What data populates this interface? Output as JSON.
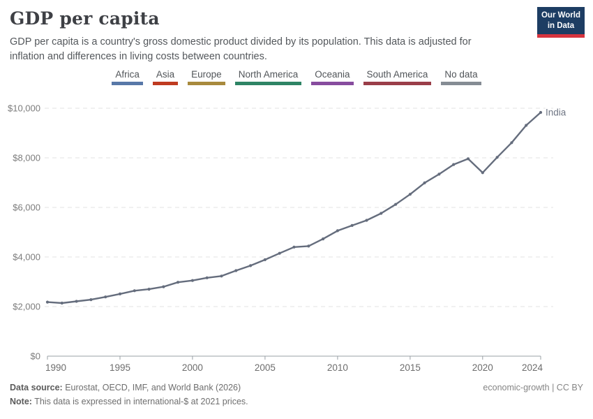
{
  "header": {
    "title": "GDP per capita",
    "subtitle": "GDP per capita is a country's gross domestic product divided by its population. This data is adjusted for inflation and differences in living costs between countries.",
    "logo": {
      "line1": "Our World",
      "line2": "in Data",
      "bg_color": "#1d3d63",
      "bar_color": "#d7343e"
    }
  },
  "legend": {
    "items": [
      {
        "label": "Africa",
        "color": "#5878A8"
      },
      {
        "label": "Asia",
        "color": "#BF3B21"
      },
      {
        "label": "Europe",
        "color": "#A88A3D"
      },
      {
        "label": "North America",
        "color": "#2E8465"
      },
      {
        "label": "Oceania",
        "color": "#874C9E"
      },
      {
        "label": "South America",
        "color": "#9A3E49"
      },
      {
        "label": "No data",
        "color": "#858C94"
      }
    ]
  },
  "chart_data": {
    "type": "line",
    "title": "GDP per capita",
    "xlabel": "",
    "ylabel": "",
    "x": [
      1990,
      1991,
      1992,
      1993,
      1994,
      1995,
      1996,
      1997,
      1998,
      1999,
      2000,
      2001,
      2002,
      2003,
      2004,
      2005,
      2006,
      2007,
      2008,
      2009,
      2010,
      2011,
      2012,
      2013,
      2014,
      2015,
      2016,
      2017,
      2018,
      2019,
      2020,
      2021,
      2022,
      2023,
      2024
    ],
    "series": [
      {
        "name": "India",
        "color": "#656D7D",
        "values": [
          2180,
          2140,
          2210,
          2280,
          2390,
          2510,
          2640,
          2700,
          2800,
          2980,
          3050,
          3160,
          3230,
          3450,
          3650,
          3890,
          4150,
          4400,
          4440,
          4730,
          5060,
          5270,
          5480,
          5760,
          6120,
          6530,
          6990,
          7340,
          7730,
          7960,
          7400,
          8020,
          8610,
          9310,
          9830
        ]
      }
    ],
    "xlim": [
      1990,
      2024
    ],
    "ylim": [
      0,
      10000
    ],
    "xticks": [
      1990,
      1995,
      2000,
      2005,
      2010,
      2015,
      2020,
      2024
    ],
    "yticks": [
      0,
      2000,
      4000,
      6000,
      8000,
      10000
    ],
    "ytick_labels": [
      "$0",
      "$2,000",
      "$4,000",
      "$6,000",
      "$8,000",
      "$10,000"
    ],
    "grid": "horizontal-dashed",
    "legend_position": "top",
    "end_label": "India"
  },
  "footer": {
    "source_label": "Data source:",
    "source_text": "Eurostat, OECD, IMF, and World Bank (2026)",
    "note_label": "Note:",
    "note_text": "This data is expressed in international-$ at 2021 prices.",
    "right_text": "economic-growth | CC BY"
  },
  "theme": {
    "axis_color": "#9aa0a6",
    "grid_color": "#e3e3e3",
    "ytick_color": "#7c7c7c",
    "xtick_color": "#6d6d6d"
  }
}
